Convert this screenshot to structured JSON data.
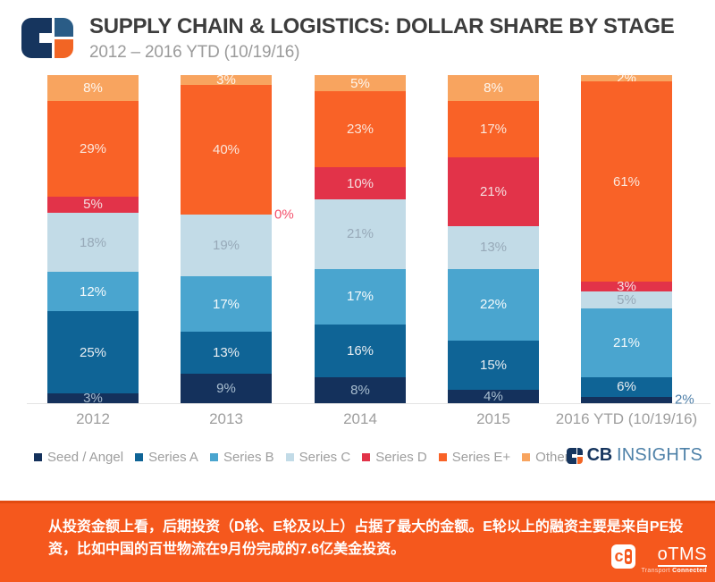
{
  "header": {
    "title": "SUPPLY CHAIN & LOGISTICS: DOLLAR SHARE BY STAGE",
    "subtitle": "2012 – 2016 YTD (10/19/16)"
  },
  "colors": {
    "brand_navy": "#16355e",
    "brand_blue": "#4e81a8",
    "brand_orange": "#f26524",
    "banner_bg": "#f5581d",
    "banner_border": "#e24b10",
    "axis_text": "#9e9e9e"
  },
  "chart_data": {
    "type": "bar",
    "stacked": true,
    "ylim": [
      0,
      100
    ],
    "grid": false,
    "legend_position": "bottom",
    "value_suffix": "%",
    "categories": [
      "2012",
      "2013",
      "2014",
      "2015",
      "2016 YTD (10/19/16)"
    ],
    "series": [
      {
        "name": "Seed / Angel",
        "color": "#14315c",
        "label_color": "#a9bed0",
        "values": [
          3,
          9,
          8,
          4,
          2
        ]
      },
      {
        "name": "Series A",
        "color": "#0f6496",
        "label_color": "#e9eef2",
        "values": [
          25,
          13,
          16,
          15,
          6
        ]
      },
      {
        "name": "Series B",
        "color": "#4aa5cf",
        "label_color": "#f4fafc",
        "values": [
          12,
          17,
          17,
          22,
          21
        ]
      },
      {
        "name": "Series C",
        "color": "#c2dbe7",
        "label_color": "#97a9b8",
        "values": [
          18,
          19,
          21,
          13,
          5
        ]
      },
      {
        "name": "Series D",
        "color": "#e23349",
        "label_color": "#f5dfe0",
        "values": [
          5,
          0,
          10,
          21,
          3
        ]
      },
      {
        "name": "Series E+",
        "color": "#f96227",
        "label_color": "#fbe7dc",
        "values": [
          29,
          40,
          23,
          17,
          61
        ]
      },
      {
        "name": "Other",
        "color": "#f8a45f",
        "label_color": "#fef7f0",
        "values": [
          8,
          3,
          5,
          8,
          2
        ]
      }
    ],
    "annotations": [
      {
        "category_index": 1,
        "series_index": 4,
        "text": "0%",
        "color": "#f4516c"
      },
      {
        "category_index": 4,
        "series_index": 0,
        "text": "2%",
        "color": "#4d7ea8"
      }
    ]
  },
  "cbinsights": {
    "cb": "CB",
    "insights": "INSIGHTS"
  },
  "banner": {
    "text": "从投资金额上看，后期投资（D轮、E轮及以上）占据了最大的金额。E轮以上的融资主要是来自PE投资，比如中国的百世物流在9月份完成的7.6亿美金投资。"
  },
  "otms": {
    "icon_letter": "c",
    "name": "oTMS",
    "tagline_light": "Transport ",
    "tagline_bold": "Connected"
  }
}
